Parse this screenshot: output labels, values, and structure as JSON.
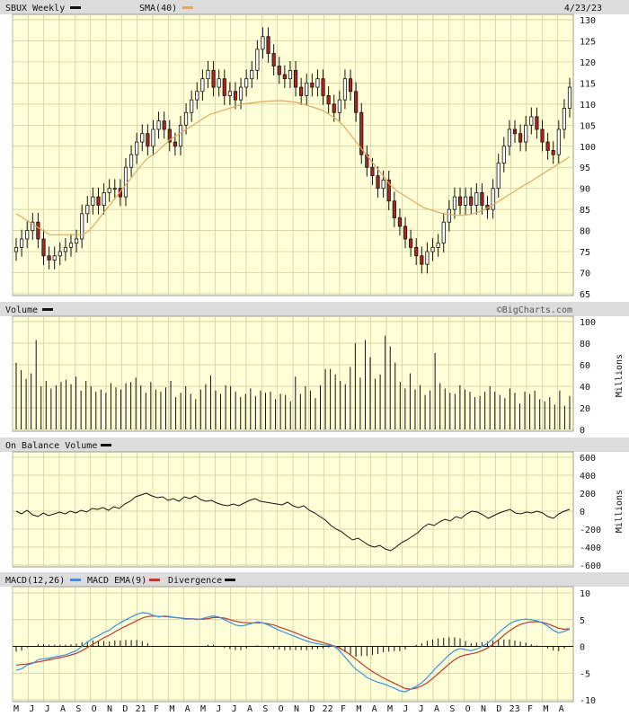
{
  "price_panel": {
    "title": "SBUX Weekly",
    "legend": [
      {
        "label": "SBUX Weekly",
        "color": "#111111"
      },
      {
        "label": "SMA(40)",
        "color": "#e0a860"
      }
    ],
    "date": "4/23/23"
  },
  "volume_panel": {
    "title": "Volume",
    "credit": "©BigCharts.com",
    "unit": "Millions"
  },
  "obv_panel": {
    "title": "On Balance Volume",
    "unit": "Millions"
  },
  "macd_panel": {
    "legend": [
      {
        "label": "MACD(12,26)",
        "color": "#3b8fe8"
      },
      {
        "label": "MACD EMA(9)",
        "color": "#c0392b"
      },
      {
        "label": "Divergence",
        "color": "#111111"
      }
    ]
  },
  "colors": {
    "panel_bg": "#ffffd7",
    "grid": "#c8c89a",
    "header_bg": "#dcdcdc",
    "up_candle": "#ffffff",
    "down_candle": "#b22222",
    "sma": "#e0a860",
    "macd": "#3b8fe8",
    "signal": "#c0392b"
  },
  "chart_data": [
    {
      "type": "candlestick",
      "title": "SBUX Weekly",
      "ylim": [
        65,
        130
      ],
      "yticks": [
        65,
        70,
        75,
        80,
        85,
        90,
        95,
        100,
        105,
        110,
        115,
        120,
        125,
        130
      ],
      "x_tick_labels": [
        "M",
        "J",
        "J",
        "A",
        "S",
        "O",
        "N",
        "D",
        "21",
        "F",
        "M",
        "A",
        "M",
        "J",
        "J",
        "A",
        "S",
        "O",
        "N",
        "D",
        "22",
        "F",
        "M",
        "A",
        "M",
        "J",
        "J",
        "A",
        "S",
        "O",
        "N",
        "D",
        "23",
        "F",
        "M",
        "A"
      ],
      "close": [
        76,
        78,
        80,
        82,
        78,
        74,
        73,
        74,
        75,
        76,
        77,
        78,
        84,
        86,
        88,
        86,
        89,
        90,
        90,
        88,
        95,
        98,
        101,
        103,
        100,
        104,
        106,
        104,
        101,
        100,
        105,
        108,
        111,
        113,
        116,
        118,
        114,
        116,
        112,
        113,
        111,
        114,
        116,
        118,
        123,
        126,
        122,
        119,
        117,
        116,
        118,
        114,
        112,
        115,
        114,
        116,
        112,
        110,
        108,
        111,
        116,
        113,
        108,
        98,
        95,
        93,
        90,
        92,
        87,
        83,
        81,
        78,
        76,
        74,
        72,
        75,
        76,
        77,
        82,
        85,
        88,
        86,
        88,
        86,
        89,
        86,
        85,
        90,
        96,
        100,
        104,
        103,
        101,
        105,
        107,
        104,
        101,
        99,
        98,
        104,
        109,
        114
      ],
      "sma40": [
        84,
        83,
        82,
        81,
        80,
        79,
        79,
        79,
        79,
        79,
        79,
        80,
        82,
        84,
        86,
        88,
        90,
        92,
        94,
        96,
        97.5,
        98.5,
        100,
        101.5,
        102.5,
        103.5,
        104.5,
        105.5,
        106.5,
        107.5,
        108,
        108.5,
        109,
        109.5,
        110,
        110.2,
        110.4,
        110.6,
        110.7,
        110.8,
        110.8,
        110.6,
        110.4,
        110,
        109.5,
        109,
        108.5,
        107.5,
        106.5,
        105,
        103,
        101,
        99,
        97,
        95,
        93,
        91,
        89.5,
        88.5,
        87.5,
        86.5,
        85.5,
        85,
        84.5,
        84,
        83.8,
        83.6,
        83.6,
        83.8,
        84.2,
        84.8,
        85.6,
        86.6,
        87.6,
        88.6,
        89.6,
        90.6,
        91.5,
        92.5,
        93.5,
        94.5,
        95.5,
        96.5,
        97.5
      ],
      "ylabel": ""
    },
    {
      "type": "bar",
      "title": "Volume",
      "ylim": [
        0,
        100
      ],
      "yticks": [
        0,
        20,
        40,
        60,
        80,
        100
      ],
      "ylabel": "Millions",
      "values": [
        62,
        55,
        47,
        52,
        83,
        40,
        45,
        38,
        41,
        44,
        46,
        42,
        49,
        36,
        45,
        40,
        35,
        37,
        34,
        43,
        39,
        37,
        43,
        44,
        48,
        41,
        34,
        44,
        37,
        35,
        39,
        45,
        30,
        34,
        40,
        33,
        28,
        37,
        42,
        50,
        36,
        33,
        41,
        40,
        35,
        30,
        33,
        38,
        31,
        36,
        34,
        35,
        28,
        33,
        32,
        26,
        49,
        33,
        40,
        36,
        29,
        41,
        56,
        56,
        51,
        45,
        42,
        58,
        80,
        48,
        83,
        67,
        47,
        51,
        87,
        77,
        62,
        44,
        38,
        52,
        37,
        41,
        32,
        36,
        71,
        43,
        38,
        34,
        33,
        41,
        37,
        35,
        30,
        31,
        35,
        40,
        35,
        32,
        29,
        38,
        34,
        24,
        35,
        33,
        36,
        28,
        26,
        30,
        23,
        36,
        22,
        31
      ],
      "labels_note": ""
    },
    {
      "type": "line",
      "title": "On Balance Volume",
      "ylim": [
        -600,
        600
      ],
      "yticks": [
        -600,
        -400,
        -200,
        0,
        200,
        400,
        600
      ],
      "ylabel": "Millions",
      "values": [
        0,
        -30,
        10,
        -40,
        -60,
        -20,
        -50,
        -30,
        -10,
        -30,
        0,
        -20,
        10,
        -10,
        30,
        20,
        40,
        10,
        50,
        30,
        80,
        110,
        160,
        180,
        200,
        170,
        150,
        160,
        120,
        140,
        110,
        160,
        140,
        170,
        130,
        110,
        120,
        90,
        70,
        60,
        80,
        60,
        90,
        120,
        140,
        110,
        100,
        90,
        80,
        70,
        100,
        60,
        40,
        60,
        10,
        -20,
        -60,
        -100,
        -160,
        -200,
        -230,
        -280,
        -320,
        -300,
        -340,
        -380,
        -400,
        -380,
        -420,
        -440,
        -400,
        -350,
        -320,
        -280,
        -240,
        -180,
        -140,
        -160,
        -120,
        -90,
        -110,
        -60,
        -80,
        -30,
        0,
        -10,
        -40,
        -80,
        -50,
        -20,
        0,
        20,
        -20,
        -30,
        -10,
        -20,
        0,
        -20,
        -60,
        -80,
        -30,
        0,
        20
      ]
    },
    {
      "type": "line",
      "title": "MACD(12,26)",
      "ylim": [
        -10,
        10
      ],
      "yticks": [
        -10,
        -5,
        0,
        5,
        10
      ],
      "ylabel": "",
      "macd": [
        -4.5,
        -4.2,
        -3.5,
        -3.2,
        -2.5,
        -2.3,
        -2.2,
        -2.0,
        -1.8,
        -1.6,
        -1.2,
        -0.8,
        0,
        0.8,
        1.5,
        2.0,
        2.6,
        3.0,
        3.8,
        4.4,
        5.0,
        5.5,
        6.0,
        6.3,
        6.2,
        5.8,
        5.5,
        5.7,
        5.6,
        5.4,
        5.3,
        5.1,
        5.2,
        5.0,
        5.2,
        5.5,
        5.7,
        5.5,
        5.0,
        4.5,
        4.0,
        3.8,
        4.0,
        4.3,
        4.6,
        4.4,
        4.0,
        3.5,
        3.0,
        2.6,
        2.2,
        1.8,
        1.4,
        1.0,
        0.7,
        0.5,
        0.3,
        0.2,
        0,
        -0.8,
        -2.0,
        -3.2,
        -4.3,
        -5.0,
        -5.8,
        -6.3,
        -6.7,
        -7.0,
        -7.4,
        -7.8,
        -8.3,
        -8.5,
        -8.0,
        -7.5,
        -6.8,
        -5.8,
        -4.7,
        -3.6,
        -2.6,
        -1.6,
        -0.8,
        -0.4,
        -0.6,
        -0.8,
        -0.5,
        0,
        0.6,
        1.5,
        2.5,
        3.4,
        4.2,
        4.7,
        5.0,
        5.1,
        5.0,
        4.8,
        4.4,
        3.8,
        3.0,
        2.5,
        2.8,
        3.2
      ],
      "signal": [
        -3.5,
        -3.4,
        -3.3,
        -3.1,
        -2.9,
        -2.7,
        -2.5,
        -2.3,
        -2.1,
        -1.9,
        -1.6,
        -1.3,
        -0.8,
        -0.2,
        0.4,
        1.0,
        1.6,
        2.1,
        2.7,
        3.3,
        3.8,
        4.3,
        4.8,
        5.3,
        5.6,
        5.7,
        5.6,
        5.6,
        5.5,
        5.4,
        5.3,
        5.2,
        5.2,
        5.1,
        5.1,
        5.2,
        5.4,
        5.4,
        5.3,
        5.0,
        4.7,
        4.5,
        4.4,
        4.4,
        4.4,
        4.4,
        4.2,
        4.0,
        3.6,
        3.3,
        2.9,
        2.5,
        2.1,
        1.7,
        1.3,
        1.0,
        0.7,
        0.4,
        0.1,
        -0.3,
        -0.9,
        -1.6,
        -2.4,
        -3.2,
        -4.0,
        -4.7,
        -5.3,
        -5.9,
        -6.4,
        -6.9,
        -7.4,
        -7.9,
        -8.0,
        -7.8,
        -7.4,
        -6.8,
        -6.0,
        -5.1,
        -4.2,
        -3.3,
        -2.5,
        -1.9,
        -1.6,
        -1.4,
        -1.2,
        -0.8,
        -0.3,
        0.4,
        1.2,
        2.1,
        2.9,
        3.6,
        4.1,
        4.4,
        4.6,
        4.6,
        4.5,
        4.2,
        3.8,
        3.4,
        3.2,
        3.3
      ]
    }
  ]
}
